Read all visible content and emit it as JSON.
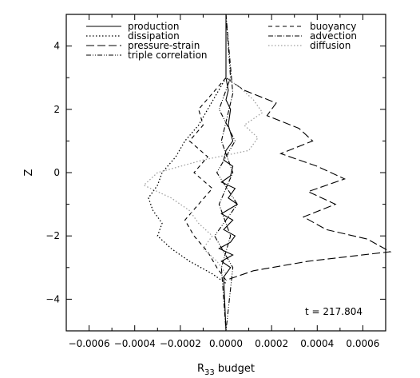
{
  "chart_data": {
    "type": "line",
    "xlabel": "R",
    "xlabel_sub": "33",
    "xlabel_suffix": " budget",
    "ylabel": "Z",
    "xlim": [
      -0.0007,
      0.0007
    ],
    "ylim": [
      -5,
      5
    ],
    "xticks": [
      -0.0006,
      -0.0004,
      -0.0002,
      0.0,
      0.0002,
      0.0004,
      0.0006
    ],
    "xtick_labels": [
      "−0.0006",
      "−0.0004",
      "−0.0002",
      "0.0000",
      "0.0002",
      "0.0004",
      "0.0006"
    ],
    "yticks": [
      -4,
      -2,
      0,
      2,
      4
    ],
    "ytick_labels": [
      "−4",
      "−2",
      "0",
      "2",
      "4"
    ],
    "grid": false,
    "legend_position": "top",
    "annotation": "t = 217.804",
    "series": [
      {
        "name": "production",
        "dash": "solid",
        "points": [
          [
            0.0,
            5.0
          ],
          [
            0.0,
            3.0
          ],
          [
            1e-05,
            2.6
          ],
          [
            0.0,
            2.3
          ],
          [
            2e-05,
            2.0
          ],
          [
            1e-05,
            1.5
          ],
          [
            3e-05,
            1.0
          ],
          [
            0.0,
            0.7
          ],
          [
            -1e-05,
            0.4
          ],
          [
            3e-05,
            0.2
          ],
          [
            2e-05,
            -0.1
          ],
          [
            -2e-05,
            -0.3
          ],
          [
            4e-05,
            -0.5
          ],
          [
            1e-05,
            -0.8
          ],
          [
            5e-05,
            -1.0
          ],
          [
            -2e-05,
            -1.3
          ],
          [
            3e-05,
            -1.5
          ],
          [
            -1e-05,
            -1.8
          ],
          [
            4e-05,
            -2.0
          ],
          [
            2e-05,
            -2.2
          ],
          [
            -3e-05,
            -2.4
          ],
          [
            3e-05,
            -2.6
          ],
          [
            -2e-05,
            -2.8
          ],
          [
            2e-05,
            -3.0
          ],
          [
            -1e-05,
            -3.3
          ],
          [
            0.0,
            -5.0
          ]
        ]
      },
      {
        "name": "dissipation",
        "dash": "dotted",
        "points": [
          [
            0.0,
            3.0
          ],
          [
            -4e-05,
            2.5
          ],
          [
            -8e-05,
            2.0
          ],
          [
            -0.00012,
            1.5
          ],
          [
            -0.00018,
            1.0
          ],
          [
            -0.00022,
            0.5
          ],
          [
            -0.00028,
            0.0
          ],
          [
            -0.0003,
            -0.4
          ],
          [
            -0.00034,
            -0.8
          ],
          [
            -0.00032,
            -1.2
          ],
          [
            -0.00028,
            -1.6
          ],
          [
            -0.0003,
            -2.0
          ],
          [
            -0.00024,
            -2.4
          ],
          [
            -0.00016,
            -2.8
          ],
          [
            -6e-05,
            -3.2
          ],
          [
            0.0,
            -3.5
          ]
        ]
      },
      {
        "name": "pressure-strain",
        "dash": "long-dash",
        "points": [
          [
            0.0,
            3.0
          ],
          [
            8e-05,
            2.6
          ],
          [
            0.00022,
            2.2
          ],
          [
            0.00018,
            1.8
          ],
          [
            0.00032,
            1.4
          ],
          [
            0.00038,
            1.0
          ],
          [
            0.00024,
            0.6
          ],
          [
            0.0004,
            0.2
          ],
          [
            0.00052,
            -0.2
          ],
          [
            0.00036,
            -0.6
          ],
          [
            0.00048,
            -1.0
          ],
          [
            0.00034,
            -1.4
          ],
          [
            0.00044,
            -1.8
          ],
          [
            0.00062,
            -2.1
          ],
          [
            0.00072,
            -2.5
          ],
          [
            0.00036,
            -2.8
          ],
          [
            0.00012,
            -3.1
          ],
          [
            0.0,
            -3.4
          ]
        ]
      },
      {
        "name": "triple correlation",
        "dash": "dash-dot-dot",
        "points": [
          [
            0.0,
            5.0
          ],
          [
            2e-05,
            3.0
          ],
          [
            -3e-05,
            2.0
          ],
          [
            4e-05,
            1.0
          ],
          [
            -4e-05,
            0.0
          ],
          [
            5e-05,
            -1.0
          ],
          [
            -5e-05,
            -2.0
          ],
          [
            3e-05,
            -3.0
          ],
          [
            0.0,
            -5.0
          ]
        ]
      },
      {
        "name": "buoyancy",
        "dash": "dashed",
        "points": [
          [
            0.0,
            3.0
          ],
          [
            -6e-05,
            2.5
          ],
          [
            -0.00012,
            2.0
          ],
          [
            -0.0001,
            1.5
          ],
          [
            -0.00016,
            1.0
          ],
          [
            -8e-05,
            0.5
          ],
          [
            -0.00014,
            0.0
          ],
          [
            -6e-05,
            -0.5
          ],
          [
            -0.00012,
            -1.0
          ],
          [
            -0.00018,
            -1.5
          ],
          [
            -0.00014,
            -2.0
          ],
          [
            -8e-05,
            -2.5
          ],
          [
            -4e-05,
            -3.0
          ],
          [
            0.0,
            -3.4
          ]
        ]
      },
      {
        "name": "advection",
        "dash": "dash-dot",
        "points": [
          [
            0.0,
            5.0
          ],
          [
            3e-05,
            2.5
          ],
          [
            -2e-05,
            1.0
          ],
          [
            3e-05,
            0.0
          ],
          [
            -3e-05,
            -1.0
          ],
          [
            2e-05,
            -2.0
          ],
          [
            -2e-05,
            -3.0
          ],
          [
            0.0,
            -5.0
          ]
        ]
      },
      {
        "name": "diffusion",
        "dash": "dotted-gray",
        "points": [
          [
            0.0,
            3.0
          ],
          [
            6e-05,
            2.7
          ],
          [
            0.00012,
            2.3
          ],
          [
            0.00016,
            1.9
          ],
          [
            8e-05,
            1.5
          ],
          [
            0.00014,
            1.1
          ],
          [
            0.0001,
            0.7
          ],
          [
            -0.0001,
            0.4
          ],
          [
            -0.0003,
            0.0
          ],
          [
            -0.00036,
            -0.4
          ],
          [
            -0.00024,
            -0.8
          ],
          [
            -0.00016,
            -1.2
          ],
          [
            -0.00012,
            -1.6
          ],
          [
            -6e-05,
            -2.0
          ],
          [
            -0.0001,
            -2.4
          ],
          [
            -4e-05,
            -2.8
          ],
          [
            0.0,
            -3.2
          ]
        ]
      }
    ]
  }
}
